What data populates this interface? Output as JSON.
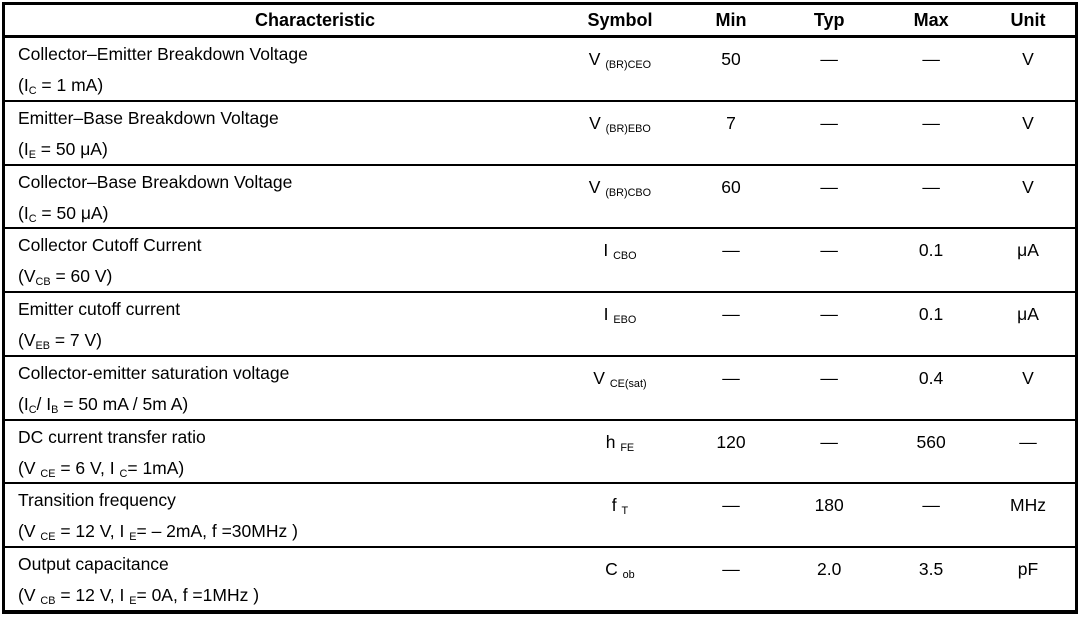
{
  "colors": {
    "border": "#000000",
    "background": "#ffffff",
    "text": "#000000"
  },
  "table": {
    "columns": [
      {
        "key": "characteristic",
        "label": "Characteristic"
      },
      {
        "key": "symbol",
        "label": "Symbol"
      },
      {
        "key": "min",
        "label": "Min"
      },
      {
        "key": "typ",
        "label": "Typ"
      },
      {
        "key": "max",
        "label": "Max"
      },
      {
        "key": "unit",
        "label": "Unit"
      }
    ],
    "rows": [
      {
        "characteristic": "Collector–Emitter Breakdown Voltage",
        "condition": "(I~C~ = 1 mA)",
        "symbol": "V ~(BR)CEO~",
        "min": "50",
        "typ": "—",
        "max": "—",
        "unit": "V"
      },
      {
        "characteristic": "Emitter–Base Breakdown Voltage",
        "condition": "(I~E~ =  50 μA)",
        "symbol": "V ~(BR)EBO~",
        "min": "7",
        "typ": "—",
        "max": "—",
        "unit": "V"
      },
      {
        "characteristic": "Collector–Base Breakdown Voltage",
        "condition": "(I~C~ =   50 μA)",
        "symbol": "V ~(BR)CBO~",
        "min": "60",
        "typ": "—",
        "max": "—",
        "unit": "V"
      },
      {
        "characteristic": "Collector Cutoff Current",
        "condition": "(V~CB~ =  60 V)",
        "symbol": "I ~CBO~",
        "min": "—",
        "typ": "—",
        "max": "0.1",
        "unit": "μA"
      },
      {
        "characteristic": "Emitter cutoff current",
        "condition": "(V~EB~ =  7 V)",
        "symbol": "I ~EBO~",
        "min": "—",
        "typ": "—",
        "max": "0.1",
        "unit": "μA"
      },
      {
        "characteristic": "Collector-emitter saturation voltage",
        "condition": "(I~C~/ I~B~ =   50 mA /  5m A)",
        "symbol": "V ~CE(sat)~",
        "min": "—",
        "typ": "—",
        "max": "0.4",
        "unit": "V"
      },
      {
        "characteristic": "DC current transfer ratio",
        "condition": "(V ~CE~ =  6 V, I ~C~= 1mA)",
        "symbol": "h ~FE~",
        "min": "120",
        "typ": "—",
        "max": "560",
        "unit": "—"
      },
      {
        "characteristic": "Transition frequency",
        "condition": "(V ~CE~ =  12 V, I ~E~= – 2mA, f =30MHz )",
        "symbol": "f ~T~",
        "min": "—",
        "typ": "180",
        "max": "—",
        "unit": "MHz"
      },
      {
        "characteristic": "Output capacitance",
        "condition": "(V ~CB~ =  12 V, I ~E~= 0A, f =1MHz )",
        "symbol": "C ~ob~",
        "min": "—",
        "typ": "2.0",
        "max": "3.5",
        "unit": "pF"
      }
    ]
  }
}
